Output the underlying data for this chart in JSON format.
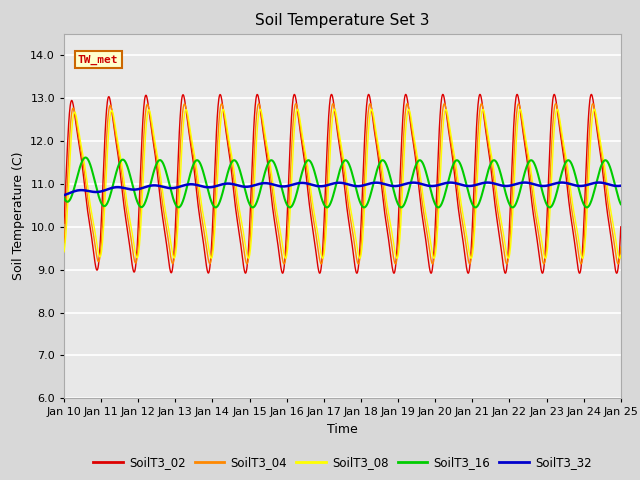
{
  "title": "Soil Temperature Set 3",
  "xlabel": "Time",
  "ylabel": "Soil Temperature (C)",
  "ylim": [
    6.0,
    14.5
  ],
  "tick_labels": [
    "Jan 10",
    "Jan 11",
    "Jan 12",
    "Jan 13",
    "Jan 14",
    "Jan 15",
    "Jan 16",
    "Jan 17",
    "Jan 18",
    "Jan 19",
    "Jan 20",
    "Jan 21",
    "Jan 22",
    "Jan 23",
    "Jan 24",
    "Jan 25"
  ],
  "annotation": "TW_met",
  "annotation_color": "#cc0000",
  "annotation_bg": "#ffffcc",
  "annotation_border": "#cc6600",
  "series": {
    "SoilT3_02": {
      "color": "#dd0000",
      "lw": 1.0
    },
    "SoilT3_04": {
      "color": "#ff8800",
      "lw": 1.0
    },
    "SoilT3_08": {
      "color": "#ffff00",
      "lw": 1.0
    },
    "SoilT3_16": {
      "color": "#00cc00",
      "lw": 1.5
    },
    "SoilT3_32": {
      "color": "#0000cc",
      "lw": 1.8
    }
  },
  "plot_bg": "#e8e8e8",
  "grid_color": "#ffffff",
  "title_fontsize": 11,
  "label_fontsize": 9,
  "tick_fontsize": 8
}
